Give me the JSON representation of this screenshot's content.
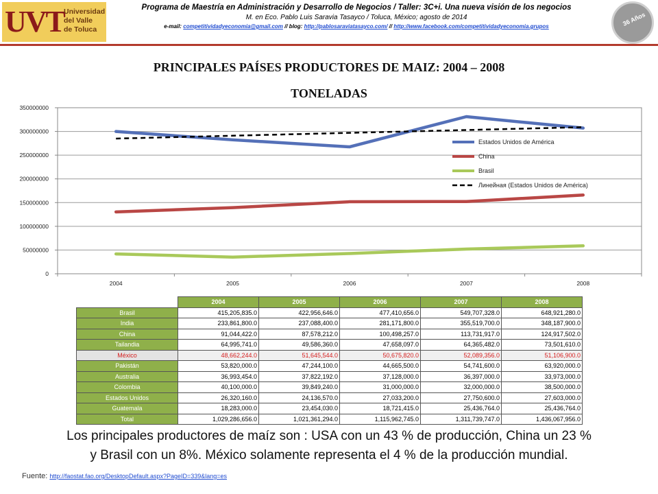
{
  "header": {
    "logo_mark": "UVT",
    "logo_text_1": "Universidad",
    "logo_text_2": "del Valle",
    "logo_text_3": "de Toluca",
    "line1": "Programa de Maestría en Administración y Desarrollo de Negocios / Taller: 3C+i. Una nueva visión de los negocios",
    "line2": "M. en Eco. Pablo Luis Saravia Tasayco / Toluca, México; agosto de 2014",
    "email_label": "e-mail:",
    "email": "competitividadyeconomia@gmail.com",
    "sep1": "// blog:",
    "blog": "http://pablosaraviatasayco.com/",
    "sep2": "//",
    "facebook": "http://www.facebook.com/competitividadyeconomia.grupos",
    "badge_text": "36 Años"
  },
  "titles": {
    "title1": "PRINCIPALES PAÍSES PRODUCTORES DE MAIZ: 2004 – 2008",
    "title2": "TONELADAS"
  },
  "chart_data": {
    "type": "line",
    "title": "",
    "xlabel": "",
    "ylabel": "",
    "x": [
      "2004",
      "2005",
      "2006",
      "2007",
      "2008"
    ],
    "ylim": [
      0,
      350000000
    ],
    "yticks": [
      "0",
      "50000000",
      "100000000",
      "150000000",
      "200000000",
      "250000000",
      "300000000",
      "350000000"
    ],
    "grid": true,
    "legend_position": "right",
    "series": [
      {
        "name": "Estados Unidos de América",
        "color": "#5470b8",
        "values": [
          299900000,
          282300000,
          267500000,
          331200000,
          307100000
        ]
      },
      {
        "name": "China",
        "color": "#b94745",
        "values": [
          130400000,
          139400000,
          151800000,
          152300000,
          165900000
        ]
      },
      {
        "name": "Brasil",
        "color": "#a9c95a",
        "values": [
          41800000,
          35100000,
          42700000,
          52100000,
          58900000
        ]
      },
      {
        "name": "Линейная (Estados Unidos de América)",
        "color": "#000000",
        "dashed": true,
        "values": [
          285000000,
          291000000,
          297000000,
          303000000,
          309000000
        ]
      }
    ]
  },
  "table": {
    "headers": [
      "2004",
      "2005",
      "2006",
      "2007",
      "2008"
    ],
    "rows": [
      {
        "country": "Brasil",
        "values": [
          "415,205,835.0",
          "422,956,646.0",
          "477,410,656.0",
          "549,707,328.0",
          "648,921,280.0"
        ]
      },
      {
        "country": "India",
        "values": [
          "233,861,800.0",
          "237,088,400.0",
          "281,171,800.0",
          "355,519,700.0",
          "348,187,900.0"
        ]
      },
      {
        "country": "China",
        "values": [
          "91,044,422.0",
          "87,578,212.0",
          "100,498,257.0",
          "113,731,917.0",
          "124,917,502.0"
        ]
      },
      {
        "country": "Tailandia",
        "values": [
          "64,995,741.0",
          "49,586,360.0",
          "47,658,097.0",
          "64,365,482.0",
          "73,501,610.0"
        ]
      },
      {
        "country": "México",
        "values": [
          "48,662,244.0",
          "51,645,544.0",
          "50,675,820.0",
          "52,089,356.0",
          "51,106,900.0"
        ]
      },
      {
        "country": "Pakistán",
        "values": [
          "53,820,000.0",
          "47,244,100.0",
          "44,665,500.0",
          "54,741,600.0",
          "63,920,000.0"
        ]
      },
      {
        "country": "Australia",
        "values": [
          "36,993,454.0",
          "37,822,192.0",
          "37,128,000.0",
          "36,397,000.0",
          "33,973,000.0"
        ]
      },
      {
        "country": "Colombia",
        "values": [
          "40,100,000.0",
          "39,849,240.0",
          "31,000,000.0",
          "32,000,000.0",
          "38,500,000.0"
        ]
      },
      {
        "country": "Estados Unidos",
        "values": [
          "26,320,160.0",
          "24,136,570.0",
          "27,033,200.0",
          "27,750,600.0",
          "27,603,000.0"
        ]
      },
      {
        "country": "Guatemala",
        "values": [
          "18,283,000.0",
          "23,454,030.0",
          "18,721,415.0",
          "25,436,764.0",
          "25,436,764.0"
        ]
      },
      {
        "country": "Total",
        "values": [
          "1,029,286,656.0",
          "1,021,361,294.0",
          "1,115,962,745.0",
          "1,311,739,747.0",
          "1,436,067,956.0"
        ]
      }
    ]
  },
  "summary": {
    "line1": "Los principales productores de maíz son : USA con un 43 % de producción, China un 23 %",
    "line2": "y Brasil con un 8%. México solamente representa el 4 % de la producción mundial."
  },
  "source": {
    "label": "Fuente:",
    "url": "http://faostat.fao.org/DesktopDefault.aspx?PageID=339&lang=es"
  }
}
